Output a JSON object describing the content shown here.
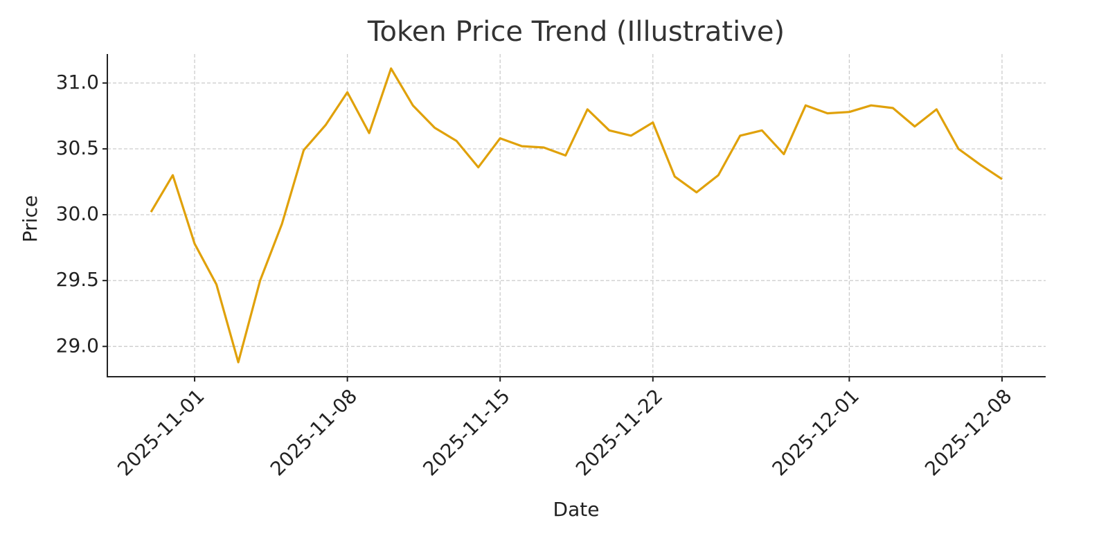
{
  "chart_data": {
    "type": "line",
    "title": "Token Price Trend (Illustrative)",
    "x_label": "Date",
    "y_label": "Price",
    "x": [
      "2025-10-30",
      "2025-10-31",
      "2025-11-01",
      "2025-11-02",
      "2025-11-03",
      "2025-11-04",
      "2025-11-05",
      "2025-11-06",
      "2025-11-07",
      "2025-11-08",
      "2025-11-09",
      "2025-11-10",
      "2025-11-11",
      "2025-11-12",
      "2025-11-13",
      "2025-11-14",
      "2025-11-15",
      "2025-11-16",
      "2025-11-17",
      "2025-11-18",
      "2025-11-19",
      "2025-11-20",
      "2025-11-21",
      "2025-11-22",
      "2025-11-23",
      "2025-11-24",
      "2025-11-25",
      "2025-11-26",
      "2025-11-27",
      "2025-11-28",
      "2025-11-29",
      "2025-11-30",
      "2025-12-01",
      "2025-12-02",
      "2025-12-03",
      "2025-12-04",
      "2025-12-05",
      "2025-12-06",
      "2025-12-07",
      "2025-12-08"
    ],
    "series": [
      {
        "name": "Price",
        "color": "#e0a10a",
        "values": [
          30.02,
          30.3,
          29.78,
          29.47,
          28.88,
          29.5,
          29.93,
          30.49,
          30.68,
          30.93,
          30.62,
          31.11,
          30.83,
          30.66,
          30.56,
          30.36,
          30.58,
          30.52,
          30.51,
          30.45,
          30.8,
          30.64,
          30.6,
          30.7,
          30.29,
          30.17,
          30.3,
          30.6,
          30.64,
          30.46,
          30.83,
          30.77,
          30.78,
          30.83,
          30.81,
          30.67,
          30.8,
          30.5,
          30.38,
          30.27
        ]
      }
    ],
    "xlim": [
      "2025-10-28",
      "2025-12-10"
    ],
    "xticks": [
      "2025-11-01",
      "2025-11-08",
      "2025-11-15",
      "2025-11-22",
      "2025-12-01",
      "2025-12-08"
    ],
    "ylim": [
      28.77,
      31.22
    ],
    "yticks": [
      {
        "value": 29,
        "label": "29.0"
      },
      29.5,
      {
        "value": 30,
        "label": "30.0"
      },
      30.5,
      {
        "value": 31,
        "label": "31.0"
      }
    ],
    "grid": true
  }
}
